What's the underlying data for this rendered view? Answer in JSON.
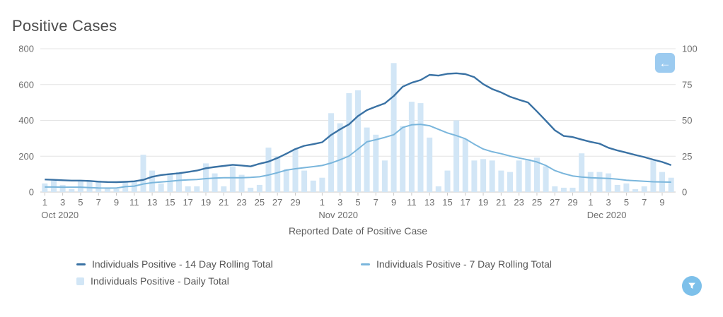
{
  "page": {
    "title": "Positive Cases"
  },
  "colors": {
    "title_text": "#4d4d4d",
    "axis_text": "#6e6e6e",
    "legend_text": "#565656",
    "gridline": "#e4e4e4",
    "axis_line": "#c8c8c8",
    "back_button_bg": "#9ccbf0",
    "filter_button_bg": "#7dc0ea",
    "line_14day": "#3a72a4",
    "line_7day": "#7ab6dc",
    "bar_daily": "#d2e6f6"
  },
  "buttons": {
    "back": {
      "icon": "left-arrow",
      "glyph": "←"
    },
    "filter": {
      "icon": "funnel"
    }
  },
  "chart_data": {
    "type": "combo",
    "title": "Positive Cases",
    "x_axis": {
      "title": "Reported Date of Positive Case",
      "months": [
        {
          "label": "Oct 2020",
          "days": 31,
          "tick_days": [
            1,
            3,
            5,
            7,
            9,
            11,
            13,
            15,
            17,
            19,
            21,
            23,
            25,
            27,
            29
          ]
        },
        {
          "label": "Nov 2020",
          "days": 30,
          "tick_days": [
            1,
            3,
            5,
            7,
            9,
            11,
            13,
            15,
            17,
            19,
            21,
            23,
            25,
            27,
            29
          ]
        },
        {
          "label": "Dec 2020",
          "days": 10,
          "tick_days": [
            1,
            3,
            5,
            7,
            9
          ]
        }
      ]
    },
    "y_axis_left": {
      "min": 0,
      "max": 800,
      "ticks": [
        800,
        600,
        400,
        200,
        0
      ]
    },
    "y_axis_right": {
      "min": 0,
      "max": 100,
      "ticks": [
        100,
        75,
        50,
        25,
        0
      ]
    },
    "series": [
      {
        "id": "rolling14",
        "name": "Individuals Positive - 14 Day Rolling Total",
        "kind": "line",
        "axis": "left",
        "color": "#3a72a4",
        "values": [
          70,
          68,
          66,
          64,
          64,
          62,
          58,
          56,
          55,
          57,
          60,
          68,
          85,
          95,
          100,
          105,
          112,
          120,
          133,
          140,
          146,
          152,
          148,
          143,
          158,
          170,
          190,
          214,
          240,
          258,
          267,
          278,
          319,
          350,
          378,
          424,
          457,
          477,
          495,
          536,
          588,
          610,
          625,
          654,
          650,
          660,
          663,
          658,
          641,
          602,
          575,
          556,
          532,
          515,
          500,
          450,
          398,
          345,
          313,
          307,
          293,
          280,
          270,
          247,
          232,
          220,
          207,
          195,
          181,
          168,
          150
        ]
      },
      {
        "id": "rolling7",
        "name": "Individuals Positive - 7 Day Rolling Total",
        "kind": "line",
        "axis": "left",
        "color": "#7ab6dc",
        "values": [
          28,
          28,
          27,
          27,
          27,
          25,
          23,
          22,
          22,
          30,
          33,
          45,
          52,
          56,
          60,
          65,
          68,
          70,
          75,
          78,
          80,
          80,
          80,
          82,
          85,
          95,
          108,
          122,
          130,
          136,
          142,
          148,
          162,
          180,
          201,
          240,
          280,
          292,
          305,
          320,
          360,
          375,
          378,
          370,
          350,
          330,
          315,
          297,
          267,
          240,
          225,
          214,
          201,
          190,
          180,
          168,
          148,
          120,
          103,
          90,
          84,
          80,
          78,
          76,
          72,
          66,
          63,
          60,
          57,
          56,
          55
        ]
      },
      {
        "id": "daily",
        "name": "Individuals Positive - Daily Total",
        "kind": "bar",
        "axis": "right",
        "color": "#d2e6f6",
        "values": [
          6,
          8,
          5,
          2,
          8,
          8,
          8,
          3,
          2,
          7,
          7,
          26,
          15,
          6,
          13,
          14,
          4,
          4,
          20,
          13,
          4,
          18,
          12,
          3,
          5,
          31,
          25,
          16,
          30,
          15,
          8,
          10,
          55,
          48,
          69,
          71,
          45,
          40,
          22,
          90,
          46,
          63,
          62,
          38,
          4,
          15,
          50,
          37,
          22,
          23,
          22,
          15,
          14,
          22,
          23,
          24,
          18,
          4,
          3,
          3,
          27,
          14,
          14,
          13,
          5,
          6,
          2,
          4,
          22,
          14,
          10
        ]
      }
    ],
    "legend_position": "bottom",
    "grid": true
  }
}
